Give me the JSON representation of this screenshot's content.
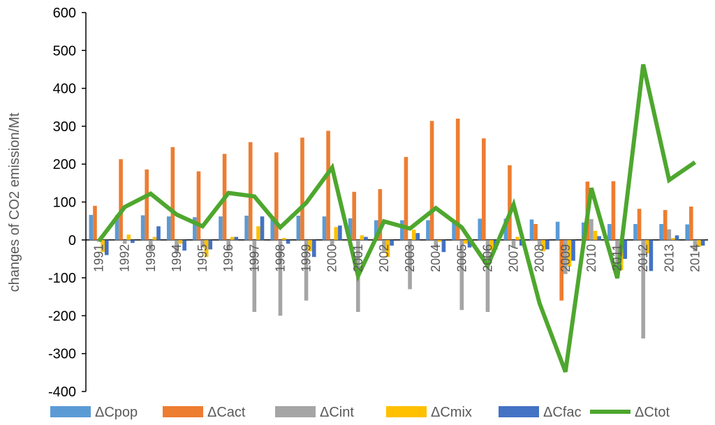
{
  "chart_data": {
    "type": "bar",
    "title": "",
    "xlabel": "",
    "ylabel": "changes of CO2 emission/Mt",
    "ylim": [
      -400,
      600
    ],
    "yticks": [
      600,
      500,
      400,
      300,
      200,
      100,
      0,
      -100,
      -200,
      -300,
      -400
    ],
    "grid": false,
    "legend_position": "bottom",
    "categories": [
      "1991",
      "1992",
      "1993",
      "1994",
      "1995",
      "1996",
      "1997",
      "1998",
      "1999",
      "2000",
      "2001",
      "2002",
      "2003",
      "2004",
      "2005",
      "2006",
      "2007",
      "2008",
      "2009",
      "2010",
      "2011",
      "2012",
      "2013",
      "2014"
    ],
    "series": [
      {
        "name": "ΔCpop",
        "kind": "bar",
        "color": "#5B9BD5",
        "values": [
          66,
          65,
          65,
          62,
          60,
          62,
          64,
          62,
          64,
          62,
          57,
          52,
          52,
          52,
          52,
          56,
          56,
          54,
          48,
          46,
          42,
          42,
          42,
          41
        ]
      },
      {
        "name": "ΔCact",
        "kind": "bar",
        "color": "#ED7D31",
        "values": [
          90,
          213,
          186,
          245,
          181,
          227,
          258,
          231,
          270,
          288,
          127,
          134,
          219,
          314,
          320,
          268,
          197,
          42,
          -160,
          154,
          155,
          82,
          79,
          88
        ]
      },
      {
        "name": "ΔCint",
        "kind": "bar",
        "color": "#A5A5A5",
        "values": [
          -5,
          -10,
          -30,
          -35,
          -20,
          -25,
          -190,
          -200,
          -160,
          -15,
          -190,
          -30,
          -130,
          -20,
          -185,
          -190,
          -20,
          -15,
          -90,
          55,
          -100,
          -260,
          28,
          -30
        ]
      },
      {
        "name": "ΔCmix",
        "kind": "bar",
        "color": "#FFC000",
        "values": [
          -32,
          14,
          8,
          -10,
          -45,
          8,
          36,
          5,
          -30,
          34,
          12,
          -45,
          27,
          -5,
          -10,
          -28,
          8,
          -30,
          -70,
          24,
          -80,
          -35,
          5,
          -18
        ]
      },
      {
        "name": "ΔCfac",
        "kind": "bar",
        "color": "#4472C4",
        "values": [
          -40,
          -8,
          36,
          -28,
          -25,
          8,
          62,
          -10,
          -45,
          38,
          8,
          -15,
          18,
          -32,
          -20,
          -25,
          -15,
          -25,
          -55,
          10,
          -50,
          -82,
          12,
          -15
        ]
      },
      {
        "name": "ΔCtot",
        "kind": "line",
        "color": "#4EA72E",
        "values": [
          -3,
          87,
          122,
          67,
          36,
          124,
          115,
          33,
          98,
          191,
          -95,
          49,
          30,
          84,
          33,
          -68,
          93,
          -167,
          -348,
          137,
          -101,
          463,
          158,
          205
        ]
      }
    ]
  }
}
